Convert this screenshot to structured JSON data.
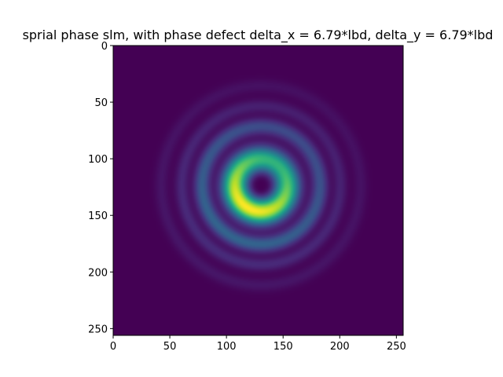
{
  "chart_data": {
    "type": "heatmap",
    "title": "sprial phase slm, with phase defect delta_x = 6.79*lbd, delta_y = 6.79*lbd",
    "xlabel": "",
    "ylabel": "",
    "grid": false,
    "xlim": [
      0,
      256
    ],
    "ylim": [
      256,
      0
    ],
    "xticks": [
      0,
      50,
      100,
      150,
      200,
      250
    ],
    "yticks": [
      0,
      50,
      100,
      150,
      200,
      250
    ],
    "colormap": "viridis",
    "image_size": [
      256,
      256
    ],
    "intensity_pattern": {
      "description_type": "vortex_ring",
      "center_x": 130,
      "center_y": 123,
      "ring_radius": 23,
      "ring_width": 11,
      "dark_core_radius": 7,
      "asymmetry_peak_angle_deg": 120,
      "asymmetry_strength": 0.35,
      "outer_rings": [
        {
          "radius": 52,
          "amplitude": 0.32,
          "width": 7
        },
        {
          "radius": 70,
          "amplitude": 0.12,
          "width": 6
        },
        {
          "radius": 88,
          "amplitude": 0.06,
          "width": 6
        }
      ]
    }
  }
}
